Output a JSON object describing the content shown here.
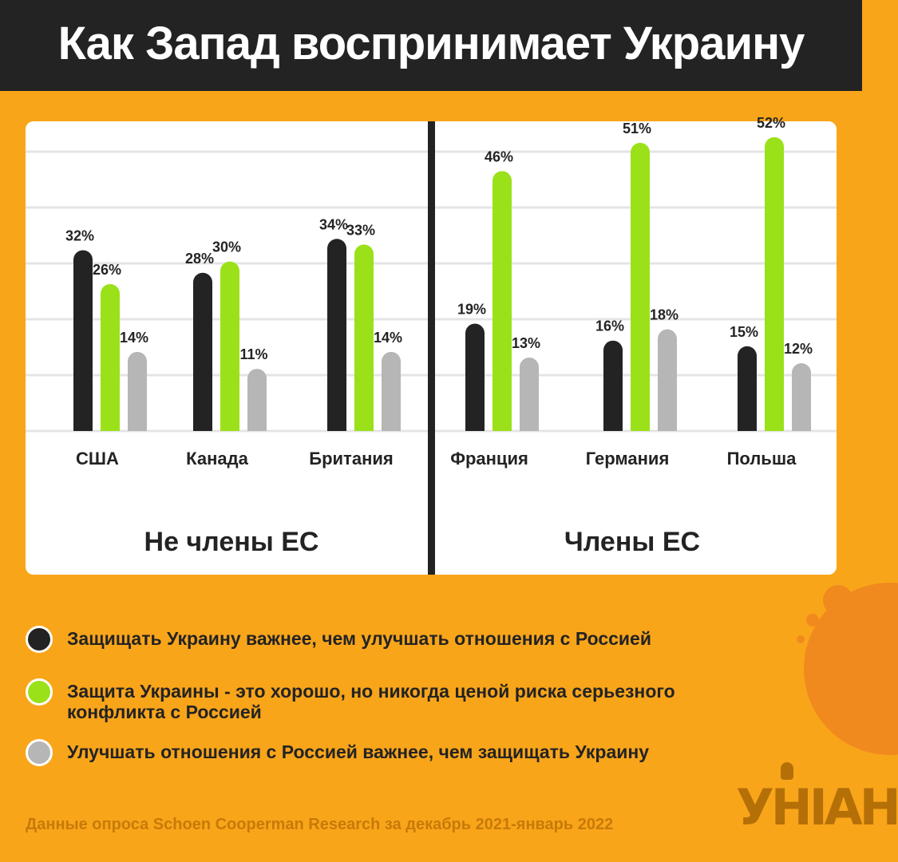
{
  "header": {
    "title": "Как Запад воспринимает Украину"
  },
  "colors": {
    "black": "#232323",
    "green": "#9be11a",
    "gray": "#b6b6b6",
    "background": "#f9a51a"
  },
  "chart_data": {
    "type": "bar",
    "categories": [
      "США",
      "Канада",
      "Британия",
      "Франция",
      "Германия",
      "Польша"
    ],
    "groups": [
      {
        "label": "Не члены ЕС",
        "categories": [
          "США",
          "Канада",
          "Британия"
        ]
      },
      {
        "label": "Члены ЕС",
        "categories": [
          "Франция",
          "Германия",
          "Польша"
        ]
      }
    ],
    "series": [
      {
        "name": "Защищать Украину важнее, чем улучшать отношения с Россией",
        "color": "#232323",
        "values": [
          32,
          28,
          34,
          19,
          16,
          15
        ]
      },
      {
        "name": "Защита Украины - это хорошо, но никогда ценой риска серьезного конфликта с Россией",
        "color": "#9be11a",
        "values": [
          26,
          30,
          33,
          46,
          51,
          52
        ]
      },
      {
        "name": "Улучшать отношения с Россией важнее, чем защищать Украину",
        "color": "#b6b6b6",
        "values": [
          14,
          11,
          14,
          13,
          18,
          12
        ]
      }
    ],
    "value_suffix": "%",
    "ylim": [
      0,
      55
    ],
    "grid": true,
    "legend_position": "bottom"
  },
  "legend": [
    {
      "label": "Защищать Украину важнее, чем улучшать отношения с Россией",
      "color": "#232323"
    },
    {
      "label": "Защита Украины - это хорошо, но никогда ценой риска серьезного конфликта с Россией",
      "color": "#9be11a"
    },
    {
      "label": "Улучшать отношения с Россией важнее, чем защищать Украину",
      "color": "#b6b6b6"
    }
  ],
  "footer": {
    "source": "Данные опроса Schoen Cooperman Research за декабрь 2021-январь 2022",
    "logo": "УНІАН"
  }
}
